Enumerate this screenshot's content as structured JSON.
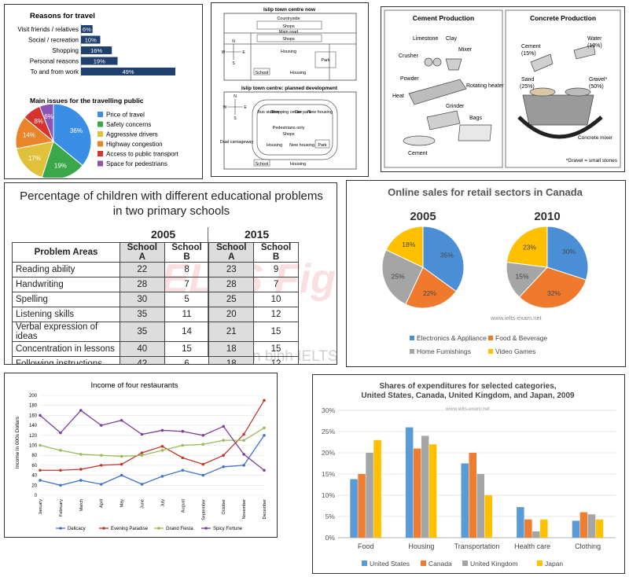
{
  "colors": {
    "blue": "#4472c4",
    "navy": "#1f3f6e",
    "orange": "#ed7d31",
    "gray": "#a5a5a5",
    "gold": "#ffc000"
  },
  "chart_data": [
    {
      "id": "reasons",
      "type": "bar",
      "orientation": "horizontal",
      "title": "Reasons for travel",
      "categories": [
        "Visit friends / relatives",
        "Social / recreation",
        "Shopping",
        "Personal reasons",
        "To and from work"
      ],
      "values": [
        6,
        10,
        16,
        19,
        49
      ],
      "labels": [
        "6%",
        "10%",
        "16%",
        "19%",
        "49%"
      ]
    },
    {
      "id": "issues",
      "type": "pie",
      "title": "Main issues for the travelling public",
      "categories": [
        "Price of travel",
        "Safety concerns",
        "Aggressive drivers",
        "Highway congestion",
        "Access to public transport",
        "Space for pedestrians"
      ],
      "values": [
        36,
        19,
        17,
        14,
        8,
        6
      ],
      "labels": [
        "36%",
        "19%",
        "17%",
        "14%",
        "8%",
        "6%"
      ],
      "colors": [
        "#3a8ee6",
        "#3aa84a",
        "#e2c13a",
        "#e9842a",
        "#d8322e",
        "#8a55b5"
      ]
    },
    {
      "id": "islip",
      "type": "map",
      "title_now": "Islip town centre now",
      "title_planned": "Islip town centre: planned development",
      "labels_now": [
        "Countryside",
        "Shops",
        "Main road",
        "Shops",
        "Housing",
        "Park",
        "School",
        "Housing"
      ],
      "labels_planned": [
        "Bus station",
        "Shopping centre",
        "Car park",
        "New housing",
        "Pedestrians only",
        "Shops",
        "Dual carriageway",
        "Housing",
        "New housing",
        "Park",
        "School",
        "Housing"
      ],
      "compass": [
        "N",
        "S",
        "W",
        "E"
      ]
    },
    {
      "id": "cement",
      "type": "diagram",
      "title_cement": "Cement Production",
      "title_concrete": "Concrete Production",
      "labels_cement": [
        "Limestone",
        "Clay",
        "Crusher",
        "Mixer",
        "Powder",
        "Rotating heater",
        "Heat",
        "Grinder",
        "Bags",
        "Cement"
      ],
      "labels_concrete": [
        "Cement",
        "(15%)",
        "Water",
        "(10%)",
        "Sand",
        "(25%)",
        "Gravel*",
        "(50%)",
        "Concrete mixer"
      ],
      "footnote": "*Gravel = small stones"
    },
    {
      "id": "children",
      "type": "table",
      "title_line1": "Percentage of children with different educational problems",
      "title_line2": "in two primary schools",
      "years": [
        "2005",
        "2015"
      ],
      "columns": [
        "Problem Areas",
        "School A",
        "School B",
        "School A",
        "School B"
      ],
      "rows": [
        [
          "Reading ability",
          "22",
          "8",
          "23",
          "9"
        ],
        [
          "Handwriting",
          "28",
          "7",
          "28",
          "7"
        ],
        [
          "Spelling",
          "30",
          "5",
          "25",
          "10"
        ],
        [
          "Listening skills",
          "35",
          "11",
          "20",
          "12"
        ],
        [
          "Verbal expression of ideas",
          "35",
          "14",
          "21",
          "15"
        ],
        [
          "Concentration in lessons",
          "40",
          "15",
          "18",
          "15"
        ],
        [
          "Following instructions",
          "42",
          "6",
          "18",
          "12"
        ]
      ],
      "watermark_big": "IELTS Fighter",
      "watermark_small": "Chiến binh IELTS"
    },
    {
      "id": "online",
      "type": "pie",
      "title": "Online sales for retail sectors in Canada",
      "pies": [
        {
          "year": "2005",
          "values": [
            35,
            22,
            25,
            18
          ],
          "labels": [
            "35%",
            "22%",
            "25%",
            "18%"
          ]
        },
        {
          "year": "2010",
          "values": [
            30,
            32,
            15,
            23
          ],
          "labels": [
            "30%",
            "32%",
            "15%",
            "23%"
          ]
        }
      ],
      "categories": [
        "Electronics & Appliance",
        "Food & Beverage",
        "Home Furnishings",
        "Video Games"
      ],
      "colors": [
        "#4a8fd6",
        "#ef7a2e",
        "#a5a5a5",
        "#ffc000"
      ],
      "watermark": "www.ielts-exam.net"
    },
    {
      "id": "income",
      "type": "line",
      "title": "Income of four restaurants",
      "ylabel": "Income in 000s Dollars",
      "ylim": [
        0,
        200
      ],
      "yticks": [
        "0",
        "20",
        "40",
        "60",
        "80",
        "100",
        "120",
        "140",
        "160",
        "180",
        "200"
      ],
      "categories": [
        "January",
        "February",
        "March",
        "April",
        "May",
        "June",
        "July",
        "August",
        "September",
        "October",
        "November",
        "December"
      ],
      "series": [
        {
          "name": "Delicacy",
          "color": "#4472c4",
          "values": [
            30,
            20,
            30,
            22,
            40,
            22,
            38,
            50,
            40,
            57,
            60,
            120
          ]
        },
        {
          "name": "Evening Paradise",
          "color": "#c0392b",
          "values": [
            50,
            50,
            52,
            60,
            62,
            85,
            98,
            75,
            62,
            80,
            122,
            190
          ]
        },
        {
          "name": "Grand Fiesta",
          "color": "#9bbb59",
          "values": [
            100,
            90,
            82,
            80,
            78,
            80,
            90,
            100,
            102,
            110,
            110,
            135
          ]
        },
        {
          "name": "Spicy Fortune",
          "color": "#7e3f98",
          "values": [
            160,
            125,
            170,
            140,
            150,
            122,
            130,
            128,
            120,
            138,
            82,
            50
          ]
        }
      ]
    },
    {
      "id": "expenditures",
      "type": "bar",
      "title_line1": "Shares of expenditures for selected categories,",
      "title_line2": "United States, Canada, United Kingdom, and Japan, 2009",
      "watermark": "www.ielts-exam.net",
      "ylim": [
        0,
        30
      ],
      "yticks": [
        "0%",
        "5%",
        "10%",
        "15%",
        "20%",
        "25%",
        "30%"
      ],
      "categories": [
        "Food",
        "Housing",
        "Transportation",
        "Health care",
        "Clothing"
      ],
      "series": [
        {
          "name": "United States",
          "color": "#5b9bd5",
          "values": [
            13.8,
            26,
            17.5,
            7.2,
            4
          ]
        },
        {
          "name": "Canada",
          "color": "#ed7d31",
          "values": [
            15,
            21,
            20,
            4.3,
            6
          ]
        },
        {
          "name": "United Kingdom",
          "color": "#a5a5a5",
          "values": [
            20,
            24,
            15,
            1.5,
            5.5
          ]
        },
        {
          "name": "Japan",
          "color": "#ffc000",
          "values": [
            23,
            22,
            10,
            4.3,
            4.3
          ]
        }
      ]
    }
  ]
}
